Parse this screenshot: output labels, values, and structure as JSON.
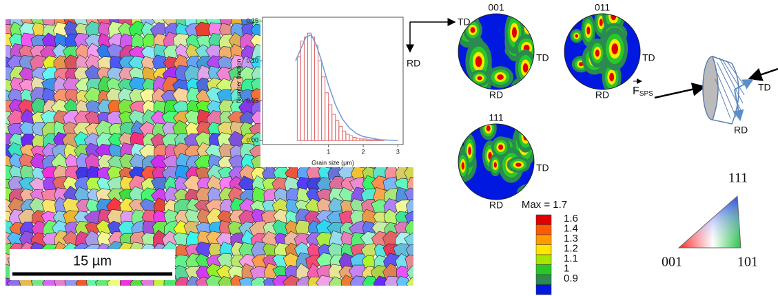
{
  "chart_data": {
    "type": "histogram",
    "x_label": "Grain size (μm)",
    "y_label": "Number fraction",
    "bins": [
      0.1,
      0.2,
      0.3,
      0.4,
      0.5,
      0.6,
      0.7,
      0.8,
      0.9,
      1.0,
      1.1,
      1.2,
      1.3,
      1.4,
      1.5,
      1.6,
      1.7,
      1.8,
      1.9,
      2.0,
      2.1,
      2.2,
      2.3,
      2.4,
      2.5,
      2.6
    ],
    "values": [
      0.105,
      0.125,
      0.13,
      0.135,
      0.13,
      0.12,
      0.1,
      0.08,
      0.06,
      0.045,
      0.033,
      0.025,
      0.018,
      0.012,
      0.008,
      0.006,
      0.004,
      0.003,
      0.002,
      0.002,
      0.001,
      0.001,
      0.001,
      0.0005,
      0.0005
    ],
    "color": "#e06666",
    "fit": {
      "x": [
        0.05,
        0.2,
        0.35,
        0.5,
        0.65,
        0.8,
        1,
        1.2,
        1.4,
        1.6,
        1.8,
        2,
        2.5,
        3
      ],
      "values": [
        0.1,
        0.115,
        0.13,
        0.133,
        0.12,
        0.1,
        0.07,
        0.045,
        0.027,
        0.016,
        0.009,
        0.005,
        0.001,
        0.0002
      ],
      "color": "#6a9bd8"
    },
    "xlim": [
      -0.9,
      3.15
    ],
    "ylim": [
      -0.005,
      0.155
    ],
    "xticks": [
      1,
      2,
      3
    ],
    "yticks": [
      {
        "value": 0,
        "label": "0.00"
      },
      {
        "value": 0.05,
        "label": "0.05"
      },
      {
        "value": 0.1,
        "label": "0.10"
      },
      {
        "value": 0.15,
        "label": "0.15"
      }
    ]
  },
  "ebsd_map": {
    "scale_bar": "15 µm"
  },
  "axes_indicator": {
    "x": "TD",
    "y": "RD"
  },
  "pole_figures": [
    {
      "label": "001",
      "right": "TD",
      "bottom": "RD"
    },
    {
      "label": "011",
      "right": "TD",
      "bottom": "RD"
    },
    {
      "label": "111",
      "right": "TD",
      "bottom": "RD"
    }
  ],
  "colorbar": {
    "title": "Max = 1.7",
    "levels": [
      1.6,
      1.4,
      1.3,
      1.2,
      1.1,
      1,
      0.9
    ],
    "colors": [
      "#e00000",
      "#ff5a00",
      "#ff9a00",
      "#ffe600",
      "#a6e600",
      "#28c828",
      "#2a8a50",
      "#0018e0"
    ]
  },
  "schematic": {
    "force": "F",
    "force_sub": "SPS",
    "td": "TD",
    "rd": "RD"
  },
  "ipf_triangle": {
    "top": "111",
    "left": "001",
    "right": "101"
  }
}
